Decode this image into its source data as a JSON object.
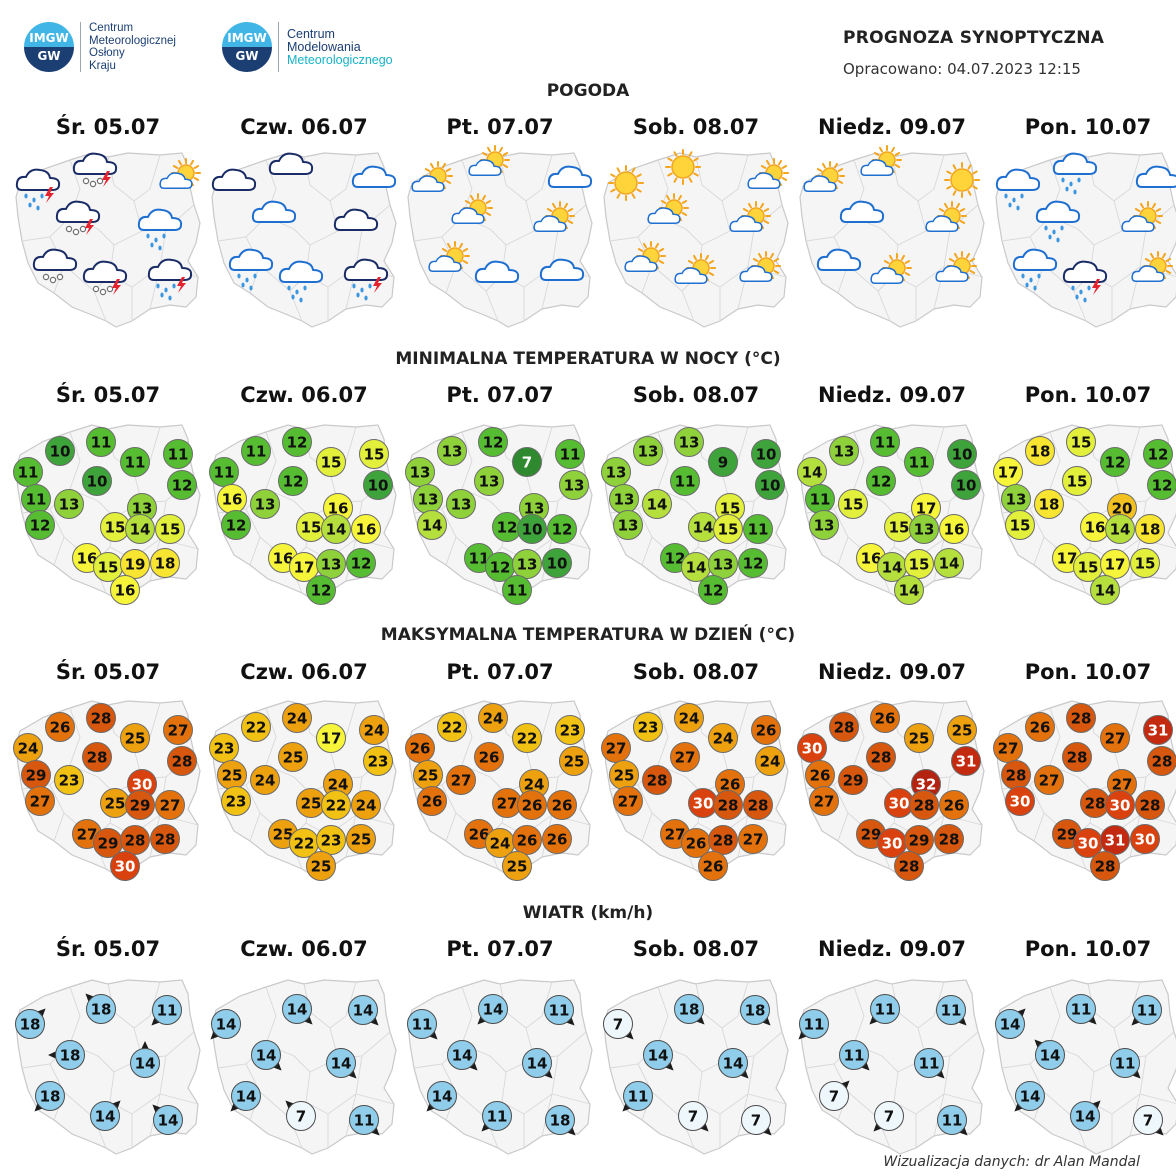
{
  "header": {
    "title": "PROGNOZA SYNOPTYCZNA",
    "prepared": "Opracowano: 04.07.2023 12:15",
    "logo1": {
      "badge_top": "IMGW",
      "badge_bottom": "GW",
      "lines": [
        "Centrum",
        "Meteorologicznej",
        "Osłony",
        "Kraju"
      ]
    },
    "logo2": {
      "badge_top": "IMGW",
      "badge_bottom": "GW",
      "lines": [
        "Centrum",
        "Modelowania",
        "Meteorologicznego"
      ]
    }
  },
  "days": [
    "Śr. 05.07",
    "Czw. 06.07",
    "Pt. 07.07",
    "Sob. 08.07",
    "Niedz. 09.07",
    "Pon. 10.07"
  ],
  "sections": {
    "weather": "POGODA",
    "tmin": "MINIMALNA TEMPERATURA W NOCY (°C)",
    "tmax": "MAKSYMALNA TEMPERATURA W DZIEŃ (°C)",
    "wind": "WIATR (km/h)"
  },
  "weather_icons": [
    [
      "cloud-rain-storm-icon",
      "cloud-storm-hail-icon",
      "sun-cloud-icon",
      "cloud-storm-hail-icon",
      "cloud-rain-icon",
      "cloud-hail-icon",
      "cloud-storm-hail-icon",
      "cloud-rain-storm-icon"
    ],
    [
      "cloud-dark-icon",
      "cloud-dark-icon",
      "cloud-icon",
      "cloud-icon",
      "cloud-dark-icon",
      "cloud-rain-icon",
      "cloud-rain-icon",
      "cloud-rain-storm-icon"
    ],
    [
      "sun-cloud-icon",
      "sun-cloud-icon",
      "cloud-icon",
      "sun-cloud-icon",
      "sun-cloud-icon",
      "sun-cloud-icon",
      "cloud-icon",
      "cloud-icon"
    ],
    [
      "sun-icon",
      "sun-icon",
      "sun-cloud-icon",
      "sun-cloud-icon",
      "sun-cloud-icon",
      "sun-cloud-icon",
      "sun-cloud-icon",
      "sun-cloud-icon"
    ],
    [
      "sun-cloud-icon",
      "sun-cloud-icon",
      "sun-icon",
      "cloud-icon",
      "sun-cloud-icon",
      "cloud-icon",
      "sun-cloud-icon",
      "sun-cloud-icon"
    ],
    [
      "cloud-rain-icon",
      "cloud-rain-icon",
      "cloud-icon",
      "cloud-rain-icon",
      "sun-cloud-icon",
      "cloud-rain-icon",
      "cloud-rain-storm-icon",
      "sun-cloud-icon"
    ]
  ],
  "tmin": [
    [
      10,
      11,
      11,
      11,
      10,
      11,
      12,
      13,
      12,
      13,
      15,
      14,
      15,
      16,
      15,
      19,
      18,
      16,
      11
    ],
    [
      11,
      12,
      15,
      11,
      12,
      16,
      10,
      13,
      12,
      16,
      15,
      14,
      16,
      16,
      17,
      13,
      12,
      12,
      15
    ],
    [
      13,
      12,
      11,
      13,
      13,
      13,
      13,
      13,
      14,
      13,
      12,
      10,
      12,
      11,
      12,
      13,
      10,
      11,
      7
    ],
    [
      13,
      13,
      10,
      13,
      11,
      13,
      10,
      14,
      13,
      15,
      14,
      15,
      11,
      12,
      14,
      13,
      12,
      12,
      9
    ],
    [
      13,
      11,
      10,
      14,
      12,
      11,
      10,
      15,
      13,
      17,
      15,
      13,
      16,
      16,
      14,
      15,
      14,
      14,
      11
    ],
    [
      18,
      15,
      12,
      17,
      15,
      13,
      12,
      18,
      15,
      20,
      16,
      14,
      18,
      17,
      15,
      17,
      15,
      14,
      12
    ]
  ],
  "tmax": [
    [
      26,
      28,
      27,
      24,
      28,
      29,
      28,
      23,
      27,
      30,
      25,
      29,
      27,
      27,
      29,
      28,
      28,
      30,
      25
    ],
    [
      22,
      24,
      24,
      23,
      25,
      25,
      23,
      24,
      23,
      24,
      25,
      22,
      24,
      25,
      22,
      23,
      25,
      25,
      17
    ],
    [
      22,
      24,
      23,
      26,
      26,
      25,
      25,
      27,
      26,
      24,
      27,
      26,
      26,
      26,
      24,
      26,
      26,
      25,
      22
    ],
    [
      23,
      24,
      26,
      27,
      27,
      25,
      24,
      28,
      27,
      26,
      30,
      28,
      28,
      27,
      26,
      28,
      27,
      26,
      24
    ],
    [
      28,
      26,
      25,
      30,
      28,
      26,
      31,
      29,
      27,
      32,
      30,
      28,
      26,
      29,
      30,
      29,
      28,
      28,
      25
    ],
    [
      26,
      28,
      31,
      27,
      28,
      28,
      28,
      27,
      30,
      27,
      28,
      30,
      28,
      29,
      30,
      31,
      30,
      28,
      27
    ]
  ],
  "wind": [
    [
      18,
      18,
      11,
      18,
      14,
      18,
      14,
      14
    ],
    [
      14,
      14,
      14,
      14,
      14,
      14,
      7,
      11
    ],
    [
      11,
      14,
      11,
      14,
      14,
      14,
      11,
      18
    ],
    [
      7,
      18,
      18,
      14,
      14,
      11,
      7,
      7
    ],
    [
      11,
      11,
      11,
      11,
      11,
      7,
      7,
      11
    ],
    [
      14,
      11,
      11,
      14,
      11,
      14,
      14,
      7
    ]
  ],
  "wind_dirs": [
    [
      45,
      315,
      225,
      270,
      0,
      225,
      45,
      315
    ],
    [
      225,
      135,
      135,
      135,
      135,
      225,
      315,
      135
    ],
    [
      135,
      225,
      135,
      135,
      135,
      225,
      225,
      135
    ],
    [
      135,
      135,
      135,
      135,
      135,
      225,
      135,
      135
    ],
    [
      225,
      225,
      135,
      135,
      135,
      45,
      225,
      135
    ],
    [
      45,
      135,
      225,
      315,
      135,
      225,
      45,
      135
    ]
  ],
  "credit": "Wizualizacja danych: dr Alan Mandal"
}
